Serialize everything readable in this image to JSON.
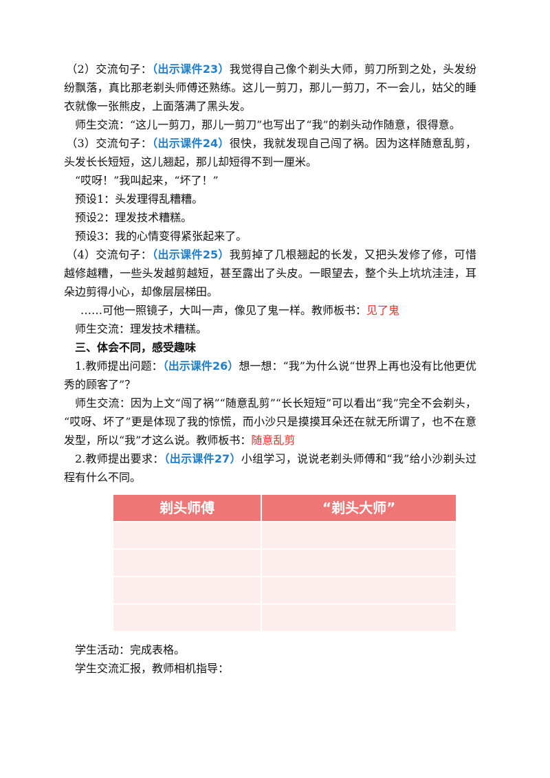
{
  "paragraphs": [
    {
      "runs": [
        {
          "text": "（2）交流句子："
        },
        {
          "text": "（出示课件23）",
          "color": "#1f7ecb",
          "bold": true
        },
        {
          "text": "我觉得自己像个剃头大师，剪刀所到之处，头发纷纷飘落，真比那老剃头师傅还熟练。这儿一剪刀，那儿一剪刀，不一会儿，姑父的睡衣就像一张熊皮，上面落满了黑头发。"
        }
      ]
    },
    {
      "runs": [
        {
          "text": "师生交流：“这儿一剪刀，那儿一剪刀”也写出了“我”的剃头动作随意，很得意。"
        }
      ]
    },
    {
      "runs": [
        {
          "text": "（3）交流句子："
        },
        {
          "text": "（出示课件24）",
          "color": "#1f7ecb",
          "bold": true
        },
        {
          "text": "很快，我就发现自己闯了祸。因为这样随意乱剪，头发长长短短，这儿翘起，那儿却短得不到一厘米。"
        }
      ]
    },
    {
      "runs": [
        {
          "text": "“哎呀！”我叫起来，“坏了！”"
        }
      ]
    },
    {
      "runs": [
        {
          "text": "预设1：头发理得乱糟糟。"
        }
      ]
    },
    {
      "runs": [
        {
          "text": "预设2：理发技术糟糕。"
        }
      ]
    },
    {
      "runs": [
        {
          "text": "预设3：我的心情变得紧张起来了。"
        }
      ]
    },
    {
      "runs": [
        {
          "text": "（4）交流句子："
        },
        {
          "text": "（出示课件25）",
          "color": "#1f7ecb",
          "bold": true
        },
        {
          "text": "我剪掉了几根翘起的长发，又把头发修了修，可惜越修越糟，一些头发越剪越短，甚至露出了头皮。一眼望去，整个头上坑坑洼洼，耳朵边剪得小心，却像层层梯田。"
        }
      ]
    },
    {
      "runs": [
        {
          "text": "……可他一照镜子，大叫一声，像见了鬼一样。教师板书："
        },
        {
          "text": "见了鬼",
          "color": "#e8302f"
        }
      ]
    },
    {
      "runs": [
        {
          "text": "师生交流：理发技术糟糕。"
        }
      ]
    },
    {
      "runs": [
        {
          "text": "三、体会不同，感受趣味",
          "bold": true
        }
      ]
    },
    {
      "runs": [
        {
          "text": "1.教师提出问题："
        },
        {
          "text": "（出示课件26）",
          "color": "#1f7ecb",
          "bold": true
        },
        {
          "text": "想一想：“我”为什么说“世界上再也没有比他更优秀的顾客了”？"
        }
      ]
    },
    {
      "runs": [
        {
          "text": "师生交流：因为上文“闯了祸”“随意乱剪”“长长短短”可以看出“我”完全不会剃头，“哎呀、坏了”更是体现了我的惊慌，而小沙只是摸摸耳朵还在就无所谓了，也不在意发型，所以“我”才这么说。教师板书："
        },
        {
          "text": "随意乱剪",
          "color": "#e8302f"
        }
      ]
    },
    {
      "runs": [
        {
          "text": "2.教师提出要求："
        },
        {
          "text": "（出示课件27）",
          "color": "#1f7ecb",
          "bold": true
        },
        {
          "text": "小组学习，说说老剃头师傅和“我”给小沙剃头过程有什么不同。"
        }
      ]
    }
  ],
  "table": {
    "headers": [
      "剃头师傅",
      "“剃头大师”"
    ]
  },
  "after": [
    {
      "runs": [
        {
          "text": "学生活动：完成表格。"
        }
      ]
    },
    {
      "runs": [
        {
          "text": "学生交流汇报，教师相机指导："
        }
      ]
    }
  ]
}
